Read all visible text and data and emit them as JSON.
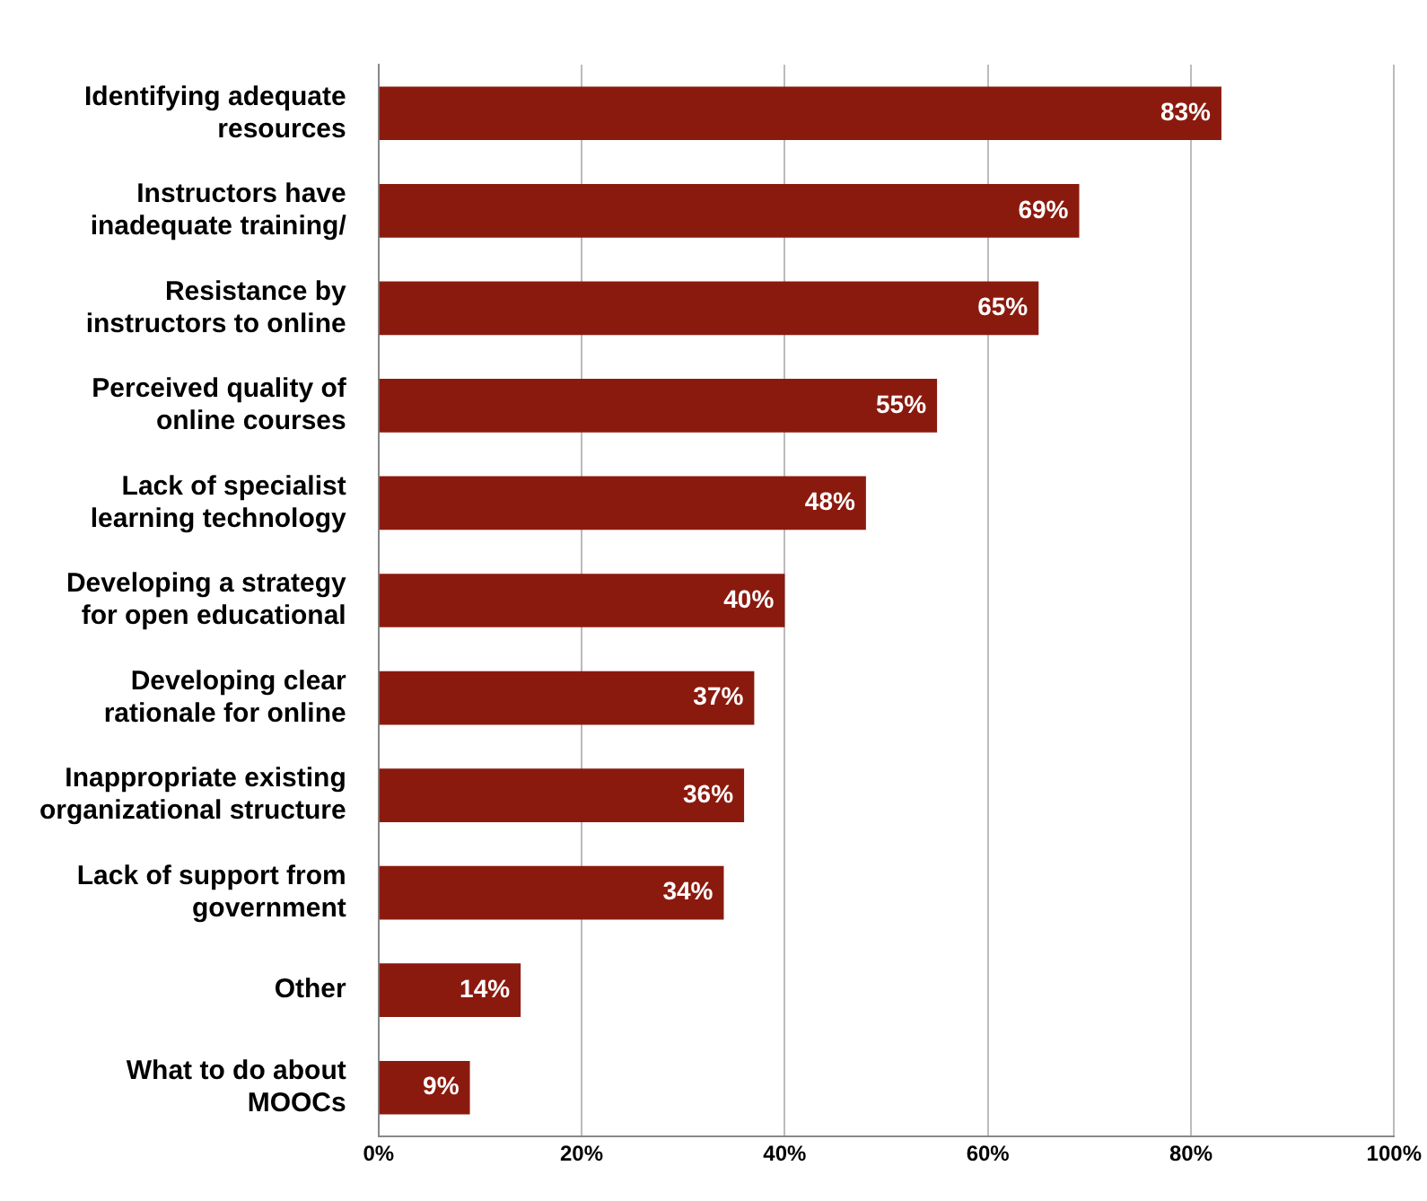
{
  "chart_data": {
    "type": "bar",
    "orientation": "horizontal",
    "categories": [
      "Identifying adequate\nresources",
      "Instructors have\ninadequate training/",
      "Resistance by\ninstructors to online",
      "Perceived quality of\nonline courses",
      "Lack of specialist\nlearning technology",
      "Developing a strategy\nfor open educational",
      "Developing clear\nrationale for online",
      "Inappropriate existing\norganizational structure",
      "Lack of support from\ngovernment",
      "Other",
      "What to do about\nMOOCs"
    ],
    "values": [
      83,
      69,
      65,
      55,
      48,
      40,
      37,
      36,
      34,
      14,
      9
    ],
    "value_labels": [
      "83%",
      "69%",
      "65%",
      "55%",
      "48%",
      "40%",
      "37%",
      "36%",
      "34%",
      "14%",
      "9%"
    ],
    "color": "#8b1a0e",
    "xlim": [
      0,
      100
    ],
    "xticks": [
      {
        "value": 0,
        "label": "0%"
      },
      {
        "value": 20,
        "label": "20%"
      },
      {
        "value": 40,
        "label": "40%"
      },
      {
        "value": 60,
        "label": "60%"
      },
      {
        "value": 80,
        "label": "80%"
      },
      {
        "value": 100,
        "label": "100%"
      }
    ],
    "grid": "x",
    "legend": false
  }
}
